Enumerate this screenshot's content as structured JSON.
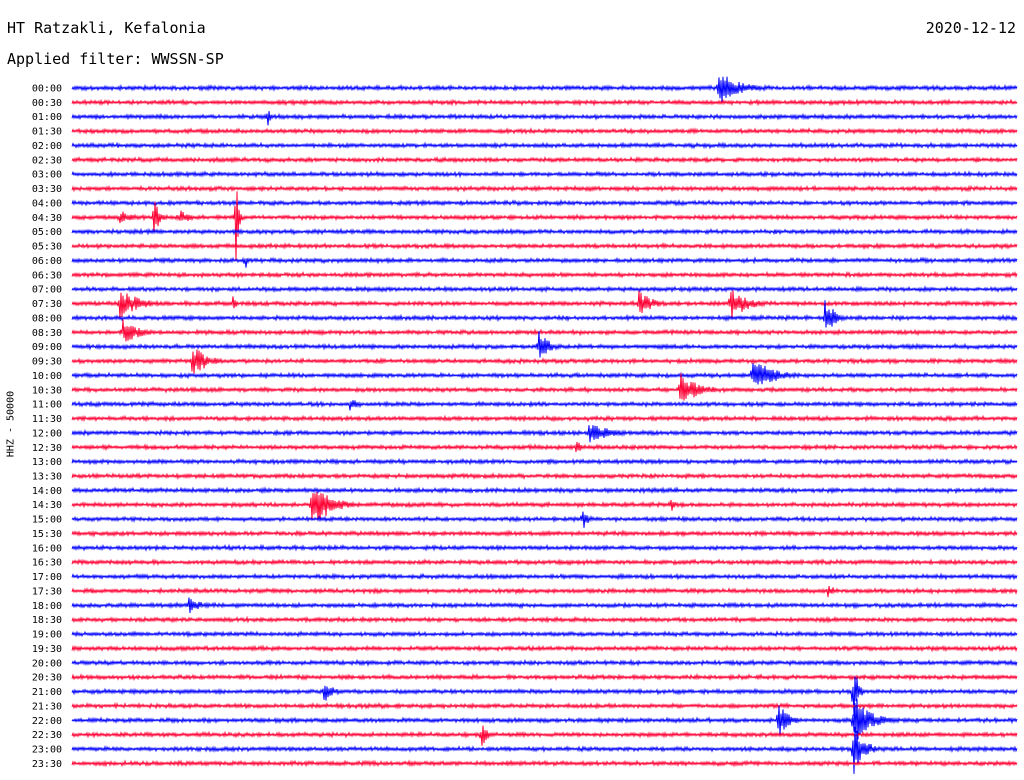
{
  "header": {
    "station": "HT Ratzakli, Kefalonia",
    "date": "2020-12-12",
    "filter": "Applied filter: WWSSN-SP"
  },
  "chart_data": {
    "type": "line",
    "title": "HT Ratzakli, Kefalonia",
    "subtitle": "Applied filter: WWSSN-SP",
    "date": "2020-12-12",
    "ylabel": "HHZ - 50000",
    "trace_colors": [
      "#0000ff",
      "#ff0033"
    ],
    "rows": [
      "00:00",
      "00:30",
      "01:00",
      "01:30",
      "02:00",
      "02:30",
      "03:00",
      "03:30",
      "04:00",
      "04:30",
      "05:00",
      "05:30",
      "06:00",
      "06:30",
      "07:00",
      "07:30",
      "08:00",
      "08:30",
      "09:00",
      "09:30",
      "10:00",
      "10:30",
      "11:00",
      "11:30",
      "12:00",
      "12:30",
      "13:00",
      "13:30",
      "14:00",
      "14:30",
      "15:00",
      "15:30",
      "16:00",
      "16:30",
      "17:00",
      "17:30",
      "18:00",
      "18:30",
      "19:00",
      "19:30",
      "20:00",
      "20:30",
      "21:00",
      "21:30",
      "22:00",
      "22:30",
      "23:00",
      "23:30"
    ],
    "events": [
      {
        "row": "00:00",
        "minute": 20.5,
        "amplitude": 18,
        "duration_min": 1.6
      },
      {
        "row": "01:00",
        "minute": 6.2,
        "amplitude": 14,
        "duration_min": 0.2
      },
      {
        "row": "04:30",
        "minute": 1.5,
        "amplitude": 8,
        "duration_min": 1.0
      },
      {
        "row": "04:30",
        "minute": 2.6,
        "amplitude": 22,
        "duration_min": 0.4
      },
      {
        "row": "04:30",
        "minute": 3.4,
        "amplitude": 8,
        "duration_min": 0.9
      },
      {
        "row": "04:30",
        "minute": 5.2,
        "amplitude": 80,
        "duration_min": 0.15
      },
      {
        "row": "06:00",
        "minute": 5.5,
        "amplitude": 12,
        "duration_min": 0.1
      },
      {
        "row": "07:30",
        "minute": 1.5,
        "amplitude": 16,
        "duration_min": 1.5
      },
      {
        "row": "07:30",
        "minute": 5.1,
        "amplitude": 8,
        "duration_min": 0.3
      },
      {
        "row": "07:30",
        "minute": 18.0,
        "amplitude": 14,
        "duration_min": 1.0
      },
      {
        "row": "07:30",
        "minute": 20.9,
        "amplitude": 18,
        "duration_min": 1.2
      },
      {
        "row": "08:00",
        "minute": 23.9,
        "amplitude": 22,
        "duration_min": 0.8
      },
      {
        "row": "08:30",
        "minute": 1.6,
        "amplitude": 14,
        "duration_min": 1.2
      },
      {
        "row": "09:00",
        "minute": 14.8,
        "amplitude": 20,
        "duration_min": 0.7
      },
      {
        "row": "09:30",
        "minute": 3.8,
        "amplitude": 18,
        "duration_min": 1.1
      },
      {
        "row": "10:00",
        "minute": 21.6,
        "amplitude": 18,
        "duration_min": 1.6
      },
      {
        "row": "10:30",
        "minute": 19.3,
        "amplitude": 18,
        "duration_min": 1.4
      },
      {
        "row": "11:00",
        "minute": 8.8,
        "amplitude": 8,
        "duration_min": 0.7
      },
      {
        "row": "12:00",
        "minute": 16.4,
        "amplitude": 10,
        "duration_min": 1.8
      },
      {
        "row": "12:30",
        "minute": 16.0,
        "amplitude": 10,
        "duration_min": 0.5
      },
      {
        "row": "14:30",
        "minute": 7.6,
        "amplitude": 28,
        "duration_min": 1.3
      },
      {
        "row": "14:30",
        "minute": 19.0,
        "amplitude": 10,
        "duration_min": 0.3
      },
      {
        "row": "15:00",
        "minute": 16.2,
        "amplitude": 14,
        "duration_min": 0.4
      },
      {
        "row": "17:30",
        "minute": 24.0,
        "amplitude": 10,
        "duration_min": 0.4
      },
      {
        "row": "18:00",
        "minute": 3.7,
        "amplitude": 10,
        "duration_min": 0.9
      },
      {
        "row": "21:00",
        "minute": 8.0,
        "amplitude": 14,
        "duration_min": 0.6
      },
      {
        "row": "21:00",
        "minute": 24.8,
        "amplitude": 40,
        "duration_min": 0.3
      },
      {
        "row": "22:00",
        "minute": 22.4,
        "amplitude": 22,
        "duration_min": 0.7
      },
      {
        "row": "22:00",
        "minute": 24.8,
        "amplitude": 30,
        "duration_min": 1.2
      },
      {
        "row": "22:30",
        "minute": 13.0,
        "amplitude": 14,
        "duration_min": 0.4
      },
      {
        "row": "23:00",
        "minute": 24.8,
        "amplitude": 30,
        "duration_min": 0.8
      }
    ]
  }
}
